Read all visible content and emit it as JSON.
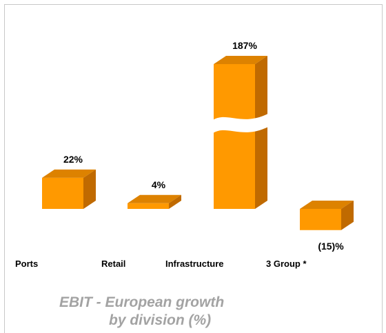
{
  "chart_data": {
    "type": "bar",
    "categories": [
      "Ports",
      "Retail",
      "Infrastructure",
      "3 Group *"
    ],
    "values": [
      22,
      4,
      187,
      -15
    ],
    "value_labels": [
      "22%",
      "4%",
      "187%",
      "(15)%"
    ],
    "axis_break": true,
    "broken_category": "Infrastructure",
    "grid": false,
    "legend": "none",
    "colors": {
      "front": "#ff9900",
      "side": "#c06a00",
      "top": "#dd8200"
    }
  },
  "caption": {
    "line1": "EBIT - European growth",
    "line2": "by division (%)"
  }
}
